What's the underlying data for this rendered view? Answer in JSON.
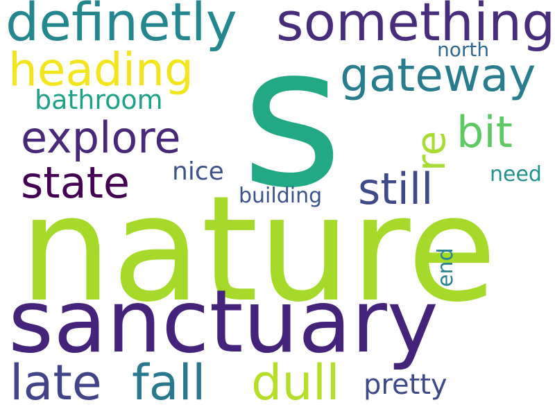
{
  "background": "#ffffff",
  "words": {
    "s": {
      "text": "s",
      "color": "#22a884"
    },
    "nature": {
      "text": "nature",
      "color": "#a6da2a"
    },
    "sanctuary": {
      "text": "sanctuary",
      "color": "#45237a"
    },
    "definetly": {
      "text": "definetly",
      "color": "#24868e"
    },
    "something": {
      "text": "something",
      "color": "#472d7b"
    },
    "heading": {
      "text": "heading",
      "color": "#f2e51d"
    },
    "gateway": {
      "text": "gateway",
      "color": "#287c8e"
    },
    "north": {
      "text": "north",
      "color": "#31688e"
    },
    "bathroom": {
      "text": "bathroom",
      "color": "#1fa187"
    },
    "explore": {
      "text": "explore",
      "color": "#482878"
    },
    "re": {
      "text": "re",
      "color": "#a8db34"
    },
    "bit": {
      "text": "bit",
      "color": "#5ec962"
    },
    "state": {
      "text": "state",
      "color": "#440154"
    },
    "nice": {
      "text": "nice",
      "color": "#3b528b"
    },
    "still": {
      "text": "still",
      "color": "#3e4a89"
    },
    "need": {
      "text": "need",
      "color": "#21918c"
    },
    "building": {
      "text": "building",
      "color": "#3b528b"
    },
    "end": {
      "text": "end",
      "color": "#26828e"
    },
    "late": {
      "text": "late",
      "color": "#414487"
    },
    "fall": {
      "text": "fall",
      "color": "#2a788e"
    },
    "dull": {
      "text": "dull",
      "color": "#b5de2b"
    },
    "pretty": {
      "text": "pretty",
      "color": "#3e4989"
    }
  }
}
